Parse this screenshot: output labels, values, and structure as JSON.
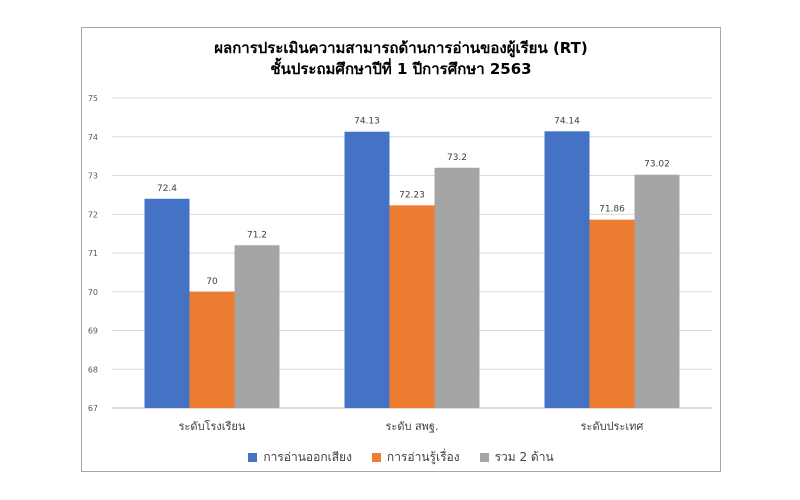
{
  "chart_data": {
    "type": "bar",
    "title": "ผลการประเมินความสามารถด้านการอ่านของผู้เรียน (RT)",
    "subtitle": "ชั้นประถมศึกษาปีที่ 1 ปีการศึกษา 2563",
    "categories": [
      "ระดับโรงเรียน",
      "ระดับ สพฐ.",
      "ระดับประเทศ"
    ],
    "series": [
      {
        "name": "การอ่านออกเสียง",
        "color": "#4472c4",
        "values": [
          72.4,
          74.13,
          74.14
        ],
        "labels": [
          "72.4",
          "74.13",
          "74.14"
        ]
      },
      {
        "name": "การอ่านรู้เรื่อง",
        "color": "#ed7d31",
        "values": [
          70,
          72.23,
          71.86
        ],
        "labels": [
          "70",
          "72.23",
          "71.86"
        ]
      },
      {
        "name": "รวม 2 ด้าน",
        "color": "#a5a5a5",
        "values": [
          71.2,
          73.2,
          73.02
        ],
        "labels": [
          "71.2",
          "73.2",
          "73.02"
        ]
      }
    ],
    "ylim": [
      67,
      75
    ],
    "yticks": [
      "67",
      "68",
      "69",
      "70",
      "71",
      "72",
      "73",
      "74",
      "75"
    ],
    "grid": true,
    "legend_position": "bottom"
  }
}
